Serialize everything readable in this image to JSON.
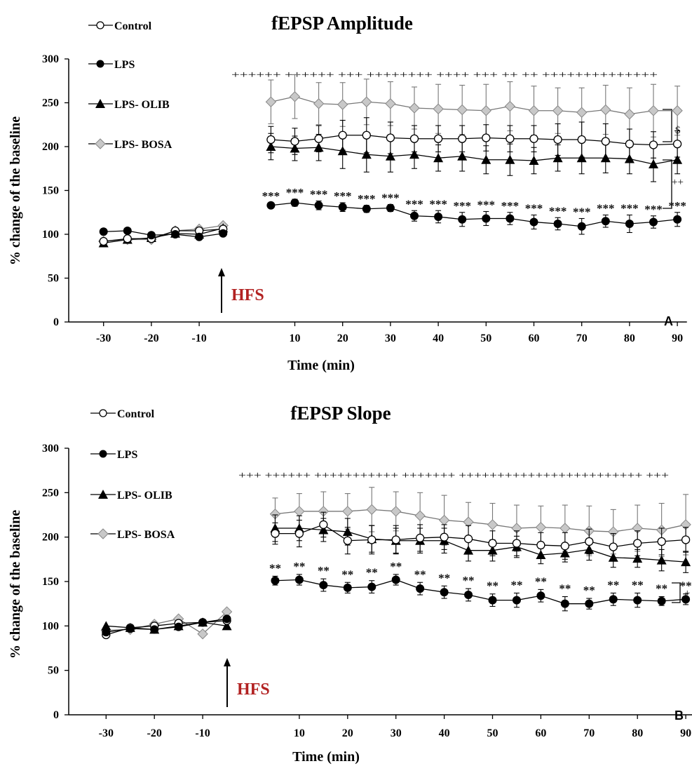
{
  "colors": {
    "hfs_text": "#b22222",
    "axis": "#000000",
    "control_fill": "#ffffff",
    "lps_fill": "#000000",
    "olib_fill": "#000000",
    "bosa_fill": "#c8c8c8"
  },
  "chart_data": [
    {
      "type": "line",
      "panel": "A",
      "title": "fEPSP Amplitude",
      "xlabel": "Time (min)",
      "ylabel": "% change of the baseline",
      "ylim": [
        0,
        300
      ],
      "yticks": [
        0,
        50,
        100,
        150,
        200,
        250,
        300
      ],
      "xticks": [
        -30,
        -20,
        -10,
        10,
        20,
        30,
        40,
        50,
        60,
        70,
        80,
        90
      ],
      "annotation": "HFS",
      "baseline_x": [
        -30,
        -25,
        -20,
        -15,
        -10,
        -5
      ],
      "post_x": [
        5,
        10,
        15,
        20,
        25,
        30,
        35,
        40,
        45,
        50,
        55,
        60,
        65,
        70,
        75,
        80,
        85,
        90
      ],
      "series": [
        {
          "name": "Control",
          "marker": "circle-open",
          "baseline": [
            92,
            95,
            95,
            104,
            104,
            106
          ],
          "post": [
            208,
            206,
            209,
            213,
            213,
            210,
            209,
            209,
            209,
            210,
            209,
            209,
            208,
            208,
            206,
            203,
            202,
            203
          ],
          "error": [
            15,
            15,
            15,
            17,
            20,
            18,
            15,
            15,
            15,
            15,
            15,
            15,
            18,
            20,
            20,
            17,
            15,
            15
          ]
        },
        {
          "name": "LPS",
          "marker": "circle-filled",
          "baseline": [
            103,
            104,
            99,
            100,
            97,
            101
          ],
          "post": [
            133,
            136,
            133,
            131,
            129,
            130,
            121,
            120,
            117,
            118,
            118,
            114,
            112,
            109,
            115,
            112,
            114,
            117
          ],
          "error": [
            3,
            4,
            5,
            5,
            4,
            4,
            6,
            7,
            8,
            8,
            7,
            8,
            7,
            9,
            7,
            10,
            7,
            8
          ]
        },
        {
          "name": "LPS- OLIB",
          "marker": "triangle-filled",
          "baseline": [
            90,
            94,
            96,
            101,
            100,
            107
          ],
          "post": [
            200,
            198,
            199,
            195,
            191,
            189,
            191,
            187,
            189,
            185,
            185,
            184,
            187,
            187,
            187,
            186,
            180,
            185
          ],
          "error": [
            15,
            14,
            15,
            20,
            20,
            18,
            16,
            15,
            17,
            16,
            18,
            15,
            15,
            18,
            17,
            17,
            20,
            16
          ]
        },
        {
          "name": "LPS- BOSA",
          "marker": "diamond-gray",
          "baseline": [
            92,
            94,
            94,
            104,
            106,
            110
          ],
          "post": [
            251,
            257,
            249,
            248,
            251,
            249,
            244,
            243,
            242,
            241,
            246,
            241,
            241,
            239,
            242,
            237,
            241,
            241
          ],
          "error": [
            25,
            25,
            24,
            25,
            26,
            25,
            24,
            28,
            28,
            30,
            28,
            28,
            26,
            28,
            28,
            30,
            30,
            28
          ]
        }
      ],
      "top_marks": "++++++ ++++++ +++ ++++++++ ++++ +++ ++ ++ ++++++++++++++",
      "lps_marks": [
        "***",
        "***",
        "***",
        "***",
        "***",
        "***",
        "***",
        "***",
        "***",
        "***",
        "***",
        "***",
        "***",
        "***",
        "***",
        "***",
        "***",
        "***"
      ],
      "bracket_upper_label": "$",
      "bracket_lower_label": "++"
    },
    {
      "type": "line",
      "panel": "B",
      "title": "fEPSP Slope",
      "xlabel": "Time (min)",
      "ylabel": "% change of the baseline",
      "ylim": [
        0,
        300
      ],
      "yticks": [
        0,
        50,
        100,
        150,
        200,
        250,
        300
      ],
      "xticks": [
        -30,
        -20,
        -10,
        10,
        20,
        30,
        40,
        50,
        60,
        70,
        80,
        90
      ],
      "annotation": "HFS",
      "baseline_x": [
        -30,
        -25,
        -20,
        -15,
        -10,
        -5
      ],
      "post_x": [
        5,
        10,
        15,
        20,
        25,
        30,
        35,
        40,
        45,
        50,
        55,
        60,
        65,
        70,
        75,
        80,
        85,
        90
      ],
      "series": [
        {
          "name": "Control",
          "marker": "circle-open",
          "baseline": [
            90,
            98,
            100,
            103,
            104,
            106
          ],
          "post": [
            204,
            204,
            214,
            196,
            197,
            197,
            199,
            200,
            198,
            193,
            193,
            191,
            190,
            195,
            189,
            193,
            195,
            197
          ],
          "error": [
            12,
            15,
            14,
            15,
            16,
            16,
            15,
            14,
            15,
            14,
            14,
            14,
            15,
            14,
            15,
            14,
            15,
            14
          ]
        },
        {
          "name": "LPS",
          "marker": "circle-filled",
          "baseline": [
            93,
            97,
            96,
            99,
            104,
            108
          ],
          "post": [
            151,
            152,
            146,
            143,
            144,
            152,
            142,
            138,
            135,
            129,
            129,
            134,
            125,
            125,
            130,
            129,
            128,
            130
          ],
          "error": [
            5,
            6,
            7,
            6,
            7,
            6,
            7,
            7,
            7,
            7,
            8,
            7,
            8,
            6,
            7,
            8,
            5,
            6
          ]
        },
        {
          "name": "LPS- OLIB",
          "marker": "triangle-filled",
          "baseline": [
            100,
            98,
            96,
            100,
            104,
            100
          ],
          "post": [
            210,
            210,
            208,
            206,
            198,
            196,
            196,
            196,
            185,
            185,
            189,
            180,
            182,
            186,
            177,
            176,
            174,
            172
          ],
          "error": [
            15,
            14,
            13,
            15,
            15,
            14,
            14,
            14,
            12,
            12,
            12,
            10,
            10,
            12,
            11,
            10,
            12,
            12
          ]
        },
        {
          "name": "LPS- BOSA",
          "marker": "diamond-gray",
          "baseline": [
            95,
            96,
            102,
            108,
            91,
            116
          ],
          "post": [
            226,
            229,
            229,
            229,
            231,
            229,
            224,
            219,
            217,
            214,
            210,
            211,
            210,
            207,
            206,
            210,
            208,
            214
          ],
          "error": [
            18,
            20,
            22,
            20,
            25,
            22,
            26,
            28,
            22,
            24,
            26,
            24,
            26,
            28,
            25,
            26,
            30,
            34
          ]
        }
      ],
      "top_marks": "+++ ++++++ +++++++++++ +++++++ ++++++++++++++++++++++++ +++",
      "lps_marks": [
        "**",
        "**",
        "**",
        "**",
        "**",
        "**",
        "**",
        "**",
        "**",
        "**",
        "**",
        "**",
        "**",
        "**",
        "**",
        "**",
        "**",
        "**"
      ],
      "bracket_lower_label": "+"
    }
  ]
}
